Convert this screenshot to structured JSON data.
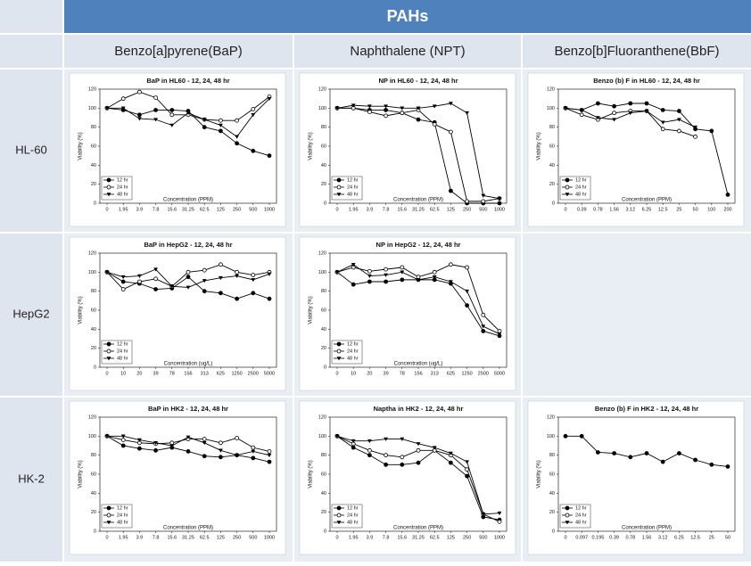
{
  "table": {
    "title": "PAHs",
    "columns": [
      "Benzo[a]pyrene(BaP)",
      "Naphthalene  (NPT)",
      "Benzo[b]Fluoranthene(BbF)"
    ],
    "rows": [
      "HL-60",
      "HepG2",
      "HK-2"
    ]
  },
  "chart_data": [
    {
      "type": "line",
      "title": "BaP in HL60 - 12, 24, 48 hr",
      "x_label": "Concentration (PPM)",
      "y_label": "Viability (%)",
      "categories": [
        "0",
        "1.95",
        "3.9",
        "7.8",
        "15.6",
        "31.25",
        "62.5",
        "125",
        "250",
        "500",
        "1000"
      ],
      "ylim": [
        0,
        120
      ],
      "yticks": [
        0,
        20,
        40,
        60,
        80,
        100,
        120
      ],
      "series": [
        {
          "name": "12 hr",
          "color": "#000000",
          "marker": "circle-filled",
          "values": [
            100,
            98,
            93,
            98,
            98,
            97,
            80,
            76,
            63,
            55,
            50
          ]
        },
        {
          "name": "24 hr",
          "color": "#000000",
          "marker": "circle-open",
          "values": [
            100,
            110,
            117,
            111,
            93,
            93,
            88,
            87,
            87,
            99,
            112
          ]
        },
        {
          "name": "48 hr",
          "color": "#000000",
          "marker": "triangle-down",
          "values": [
            100,
            100,
            89,
            88,
            82,
            95,
            88,
            82,
            70,
            93,
            110
          ]
        }
      ]
    },
    {
      "type": "line",
      "title": "NP in HL60 - 12, 24, 48 hr",
      "x_label": "Concentration (PPM)",
      "y_label": "Viability (%)",
      "categories": [
        "0",
        "1.95",
        "3.9",
        "7.8",
        "15.6",
        "31.25",
        "62.5",
        "125",
        "250",
        "500",
        "1000"
      ],
      "ylim": [
        0,
        120
      ],
      "yticks": [
        0,
        20,
        40,
        60,
        80,
        100,
        120
      ],
      "series": [
        {
          "name": "12 hr",
          "color": "#000000",
          "marker": "circle-filled",
          "values": [
            100,
            100,
            98,
            98,
            95,
            88,
            85,
            13,
            0,
            0,
            0
          ]
        },
        {
          "name": "24 hr",
          "color": "#000000",
          "marker": "circle-open",
          "values": [
            100,
            100,
            96,
            92,
            95,
            98,
            83,
            75,
            2,
            2,
            5
          ]
        },
        {
          "name": "48 hr",
          "color": "#000000",
          "marker": "triangle-down",
          "values": [
            100,
            103,
            102,
            102,
            100,
            100,
            102,
            105,
            95,
            8,
            5
          ]
        }
      ]
    },
    {
      "type": "line",
      "title": "Benzo (b) F in HL60 - 12, 24, 48 hr",
      "x_label": "Concentration (PPM)",
      "y_label": "Viability (%)",
      "categories": [
        "0",
        "0.39",
        "0.78",
        "1.56",
        "3.12",
        "6.25",
        "12.5",
        "25",
        "50",
        "100",
        "200"
      ],
      "ylim": [
        0,
        120
      ],
      "yticks": [
        0,
        20,
        40,
        60,
        80,
        100,
        120
      ],
      "series": [
        {
          "name": "12 hr",
          "color": "#000000",
          "marker": "circle-filled",
          "values": [
            100,
            98,
            105,
            102,
            105,
            105,
            98,
            97,
            78,
            76,
            9
          ]
        },
        {
          "name": "24 hr",
          "color": "#000000",
          "marker": "circle-open",
          "values": [
            100,
            93,
            88,
            95,
            97,
            97,
            78,
            76,
            70,
            null,
            null
          ]
        },
        {
          "name": "48 hr",
          "color": "#000000",
          "marker": "triangle-down",
          "values": [
            100,
            98,
            90,
            88,
            95,
            97,
            85,
            88,
            80,
            null,
            null
          ]
        }
      ]
    },
    {
      "type": "line",
      "title": "BaP in HepG2 - 12, 24, 48 hr",
      "x_label": "Concentration (ug/L)",
      "y_label": "Viability (%)",
      "categories": [
        "0",
        "10",
        "20",
        "39",
        "78",
        "156",
        "313",
        "625",
        "1250",
        "2500",
        "5000"
      ],
      "ylim": [
        0,
        120
      ],
      "yticks": [
        0,
        20,
        40,
        60,
        80,
        100,
        120
      ],
      "series": [
        {
          "name": "12 hr",
          "color": "#000000",
          "marker": "circle-filled",
          "values": [
            100,
            90,
            88,
            82,
            83,
            95,
            80,
            78,
            72,
            78,
            72
          ]
        },
        {
          "name": "24 hr",
          "color": "#000000",
          "marker": "circle-open",
          "values": [
            100,
            82,
            90,
            93,
            85,
            100,
            102,
            108,
            100,
            97,
            100
          ]
        },
        {
          "name": "48 hr",
          "color": "#000000",
          "marker": "triangle-down",
          "values": [
            100,
            95,
            96,
            103,
            85,
            84,
            91,
            94,
            96,
            92,
            98
          ]
        }
      ]
    },
    {
      "type": "line",
      "title": "NP in HepG2 - 12, 24, 48 hr",
      "x_label": "Concentration (ug/L)",
      "y_label": "Viability (%)",
      "categories": [
        "0",
        "10",
        "20",
        "39",
        "78",
        "156",
        "313",
        "625",
        "1250",
        "2500",
        "5000"
      ],
      "ylim": [
        0,
        120
      ],
      "yticks": [
        0,
        20,
        40,
        60,
        80,
        100,
        120
      ],
      "series": [
        {
          "name": "12 hr",
          "color": "#000000",
          "marker": "circle-filled",
          "values": [
            100,
            87,
            90,
            90,
            92,
            92,
            92,
            88,
            65,
            38,
            33
          ]
        },
        {
          "name": "24 hr",
          "color": "#000000",
          "marker": "circle-open",
          "values": [
            100,
            105,
            101,
            103,
            105,
            95,
            100,
            108,
            105,
            55,
            38
          ]
        },
        {
          "name": "48 hr",
          "color": "#000000",
          "marker": "triangle-down",
          "values": [
            100,
            108,
            96,
            97,
            100,
            92,
            95,
            90,
            80,
            43,
            35
          ]
        }
      ]
    },
    {
      "type": "line",
      "title": "BaP in HK2 - 12, 24, 48 hr",
      "x_label": "Concentration (PPM)",
      "y_label": "Viability (%)",
      "categories": [
        "0",
        "1.95",
        "3.9",
        "7.8",
        "15.6",
        "31.25",
        "62.5",
        "125",
        "250",
        "500",
        "1000"
      ],
      "ylim": [
        0,
        120
      ],
      "yticks": [
        0,
        20,
        40,
        60,
        80,
        100,
        120
      ],
      "series": [
        {
          "name": "12 hr",
          "color": "#000000",
          "marker": "circle-filled",
          "values": [
            100,
            90,
            87,
            85,
            88,
            84,
            79,
            78,
            80,
            77,
            73
          ]
        },
        {
          "name": "24 hr",
          "color": "#000000",
          "marker": "circle-open",
          "values": [
            100,
            96,
            93,
            92,
            93,
            97,
            97,
            93,
            98,
            88,
            84
          ]
        },
        {
          "name": "48 hr",
          "color": "#000000",
          "marker": "triangle-down",
          "values": [
            100,
            100,
            96,
            93,
            90,
            99,
            93,
            85,
            80,
            84,
            80
          ]
        }
      ]
    },
    {
      "type": "line",
      "title": "Naptha in HK2 - 12, 24, 48 hr",
      "x_label": "Concentration (PPM)",
      "y_label": "Viability (%)",
      "categories": [
        "0",
        "1.95",
        "3.9",
        "7.8",
        "15.6",
        "31.25",
        "62.5",
        "125",
        "250",
        "500",
        "1000"
      ],
      "ylim": [
        0,
        120
      ],
      "yticks": [
        0,
        20,
        40,
        60,
        80,
        100,
        120
      ],
      "series": [
        {
          "name": "12 hr",
          "color": "#000000",
          "marker": "circle-filled",
          "values": [
            100,
            88,
            80,
            70,
            70,
            72,
            85,
            72,
            58,
            15,
            12
          ]
        },
        {
          "name": "24 hr",
          "color": "#000000",
          "marker": "circle-open",
          "values": [
            100,
            92,
            85,
            80,
            78,
            85,
            85,
            80,
            65,
            18,
            10
          ]
        },
        {
          "name": "48 hr",
          "color": "#000000",
          "marker": "triangle-down",
          "values": [
            100,
            95,
            95,
            97,
            97,
            92,
            88,
            82,
            73,
            18,
            19
          ]
        }
      ]
    },
    {
      "type": "line",
      "title": "Benzo (b) F in HK2 - 12, 24, 48 hr",
      "x_label": "Concentration (PPM)",
      "y_label": "Viability (%)",
      "categories": [
        "0",
        "0.097",
        "0.195",
        "0.39",
        "0.78",
        "1.56",
        "3.12",
        "6.25",
        "12.5",
        "25",
        "50"
      ],
      "ylim": [
        0,
        120
      ],
      "yticks": [
        0,
        20,
        40,
        60,
        80,
        100,
        120
      ],
      "series": [
        {
          "name": "12 hr",
          "color": "#000000",
          "marker": "circle-filled",
          "values": [
            100,
            100,
            83,
            82,
            78,
            82,
            73,
            82,
            75,
            70,
            68
          ]
        },
        {
          "name": "24 hr",
          "color": "#000000",
          "marker": "circle-open",
          "values": [
            null,
            null,
            null,
            null,
            null,
            null,
            null,
            null,
            null,
            null,
            null
          ]
        },
        {
          "name": "48 hr",
          "color": "#000000",
          "marker": "triangle-down",
          "values": [
            null,
            null,
            null,
            null,
            null,
            null,
            null,
            null,
            null,
            null,
            null
          ]
        }
      ]
    }
  ]
}
